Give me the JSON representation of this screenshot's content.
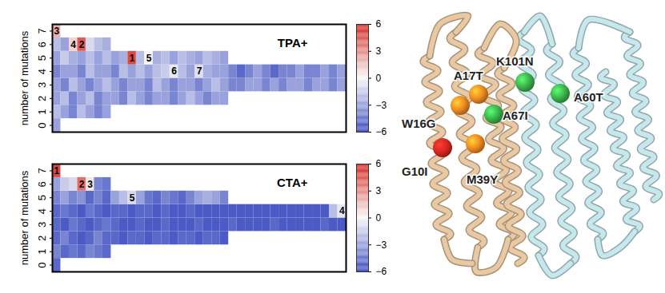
{
  "chart_data": [
    {
      "type": "heatmap",
      "title": "TPA+",
      "ylabel": "number of mutations",
      "xlim": [
        0,
        35
      ],
      "ylim": [
        -0.5,
        7.5
      ],
      "yticks": [
        0,
        1,
        2,
        3,
        4,
        5,
        6,
        7
      ],
      "tick_labels": "y",
      "cells": [
        [
          -3
        ],
        [
          -2,
          -3,
          -4,
          -2,
          -3,
          -4,
          -3
        ],
        [
          -3,
          -2,
          -4,
          -3,
          -2,
          -4,
          -3,
          -3,
          -4,
          -2,
          -3,
          -4,
          -3,
          -3,
          -4,
          -3,
          -2,
          -3,
          -4,
          -3,
          -3
        ],
        [
          -3,
          -4,
          -2,
          -3,
          -4,
          -3,
          -2,
          -3,
          -4,
          -3,
          -3,
          -4,
          -2,
          -3,
          -4,
          -3,
          -3,
          -4,
          -3,
          -2,
          -3,
          -4,
          -4,
          -3,
          -3,
          -4,
          -3,
          -4,
          -3,
          -3,
          -4,
          -3,
          -3,
          -4,
          -3
        ],
        [
          -4,
          -3,
          -3,
          -4,
          -2,
          -3,
          -3,
          -4,
          -2,
          -3,
          -2,
          -3,
          -2,
          -1.5,
          -0.5,
          -2,
          -3,
          -0.8,
          -2.5,
          -3,
          -3,
          -4,
          -5,
          -4,
          -3,
          -4,
          -5,
          -4,
          -4,
          -3,
          -4,
          -4,
          -3,
          -4,
          -3
        ],
        [
          -3,
          -1.5,
          -2.5,
          -3,
          -2,
          -3,
          -2,
          -3,
          -2.5,
          5,
          -2,
          0,
          -2.5,
          -2,
          -3,
          -2,
          -2.5,
          -3,
          -2,
          -2.5,
          -3
        ],
        [
          -2,
          -3,
          1,
          4.5,
          -1,
          -2,
          -2.5
        ],
        [
          2
        ]
      ],
      "annotations": [
        {
          "row": 5,
          "col": 9,
          "label": "1"
        },
        {
          "row": 6,
          "col": 3,
          "label": "2"
        },
        {
          "row": 7,
          "col": 0,
          "label": "3"
        },
        {
          "row": 6,
          "col": 2,
          "label": "4"
        },
        {
          "row": 5,
          "col": 11,
          "label": "5"
        },
        {
          "row": 4,
          "col": 14,
          "label": "6"
        },
        {
          "row": 4,
          "col": 17,
          "label": "7"
        }
      ],
      "colorbar": {
        "range": [
          -6,
          6
        ],
        "ticks": [
          -6,
          -3,
          0,
          3,
          6
        ]
      }
    },
    {
      "type": "heatmap",
      "title": "CTA+",
      "ylabel": "number of mutations",
      "xlim": [
        0,
        35
      ],
      "ylim": [
        -0.5,
        7.5
      ],
      "yticks": [
        0,
        1,
        2,
        3,
        4,
        5,
        6,
        7
      ],
      "tick_labels": "y",
      "cells": [
        [
          -5
        ],
        [
          -4,
          -5,
          -4.5,
          -5,
          -4,
          -4.5,
          -5
        ],
        [
          -5,
          -4,
          -5,
          -5.5,
          -5,
          -4,
          -5,
          -5,
          -5.5,
          -5,
          -5,
          -5.5,
          -5,
          -5,
          -5.5,
          -5,
          -5,
          -5.5,
          -5,
          -5,
          -5.5
        ],
        [
          -5,
          -5.5,
          -4.5,
          -5,
          -5.5,
          -5,
          -4.5,
          -5,
          -5.5,
          -5.5,
          -5,
          -5.5,
          -5.5,
          -5,
          -5.5,
          -5.5,
          -5.5,
          -5,
          -5.5,
          -5.5,
          -5.5,
          -5,
          -5.5,
          -5.5,
          -5.5,
          -5.5,
          -5,
          -5.5,
          -5.5,
          -5.5,
          -5.5,
          -5.5,
          -5,
          -5.5,
          -5.5
        ],
        [
          -5,
          -4.5,
          -5,
          -5.5,
          -4.5,
          -5,
          -5.5,
          -5,
          -5,
          -5.5,
          -5,
          -5,
          -5.5,
          -5,
          -5.5,
          -5.5,
          -5,
          -5.5,
          -5.5,
          -5.5,
          -5.5,
          -5.5,
          -5.5,
          -5.5,
          -5.5,
          -5.5,
          -5.5,
          -5.5,
          -5.5,
          -5.5,
          -5.5,
          -5.5,
          -5.5,
          -2,
          -0.5
        ],
        [
          -4,
          -3,
          -4,
          -3.5,
          -5,
          -4,
          -5,
          -3,
          -2,
          -1,
          -3,
          -4.5,
          -5,
          -4,
          -4.5,
          -5,
          -4,
          -3,
          -2.5,
          -3,
          -4
        ],
        [
          -3,
          -1.5,
          -1,
          4,
          0.5,
          -4,
          -4.5
        ],
        [
          5
        ]
      ],
      "annotations": [
        {
          "row": 7,
          "col": 0,
          "label": "1"
        },
        {
          "row": 6,
          "col": 3,
          "label": "2"
        },
        {
          "row": 6,
          "col": 4,
          "label": "3"
        },
        {
          "row": 4,
          "col": 34,
          "label": "4"
        },
        {
          "row": 5,
          "col": 9,
          "label": "5"
        }
      ],
      "colorbar": {
        "range": [
          -6,
          6
        ],
        "ticks": [
          -6,
          -3,
          0,
          3,
          6
        ]
      }
    }
  ],
  "structure": {
    "chain_colors": [
      "#e9c9a3",
      "#c6e8ec"
    ],
    "residues": [
      {
        "label": "G10I",
        "color": "#d62820"
      },
      {
        "label": "W16G",
        "color": "#ee8a22"
      },
      {
        "label": "A17T",
        "color": "#ee8a22"
      },
      {
        "label": "M39Y",
        "color": "#ee8a22"
      },
      {
        "label": "A67I",
        "color": "#3cb44b"
      },
      {
        "label": "K101N",
        "color": "#3cb44b"
      },
      {
        "label": "A60T",
        "color": "#3cb44b"
      }
    ]
  }
}
